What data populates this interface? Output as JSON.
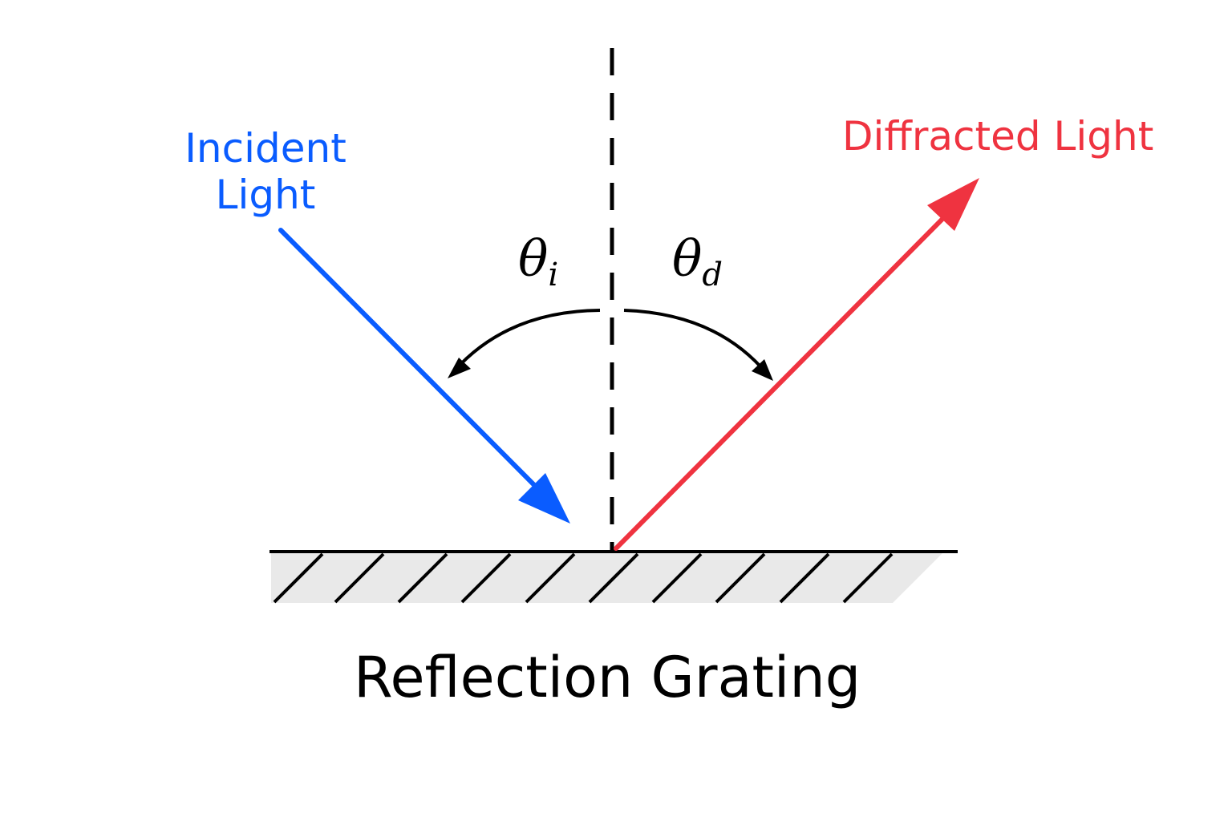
{
  "labels": {
    "incident_line1": "Incident",
    "incident_line2": "Light",
    "diffracted": "Diffracted Light",
    "grating": "Reflection Grating",
    "theta_symbol": "θ",
    "theta_i_subscript": "i",
    "theta_d_subscript": "d"
  },
  "colors": {
    "incident": "#0a5cff",
    "diffracted": "#ef3340",
    "ink": "#000000",
    "grating_fill": "#e9e9e9"
  }
}
